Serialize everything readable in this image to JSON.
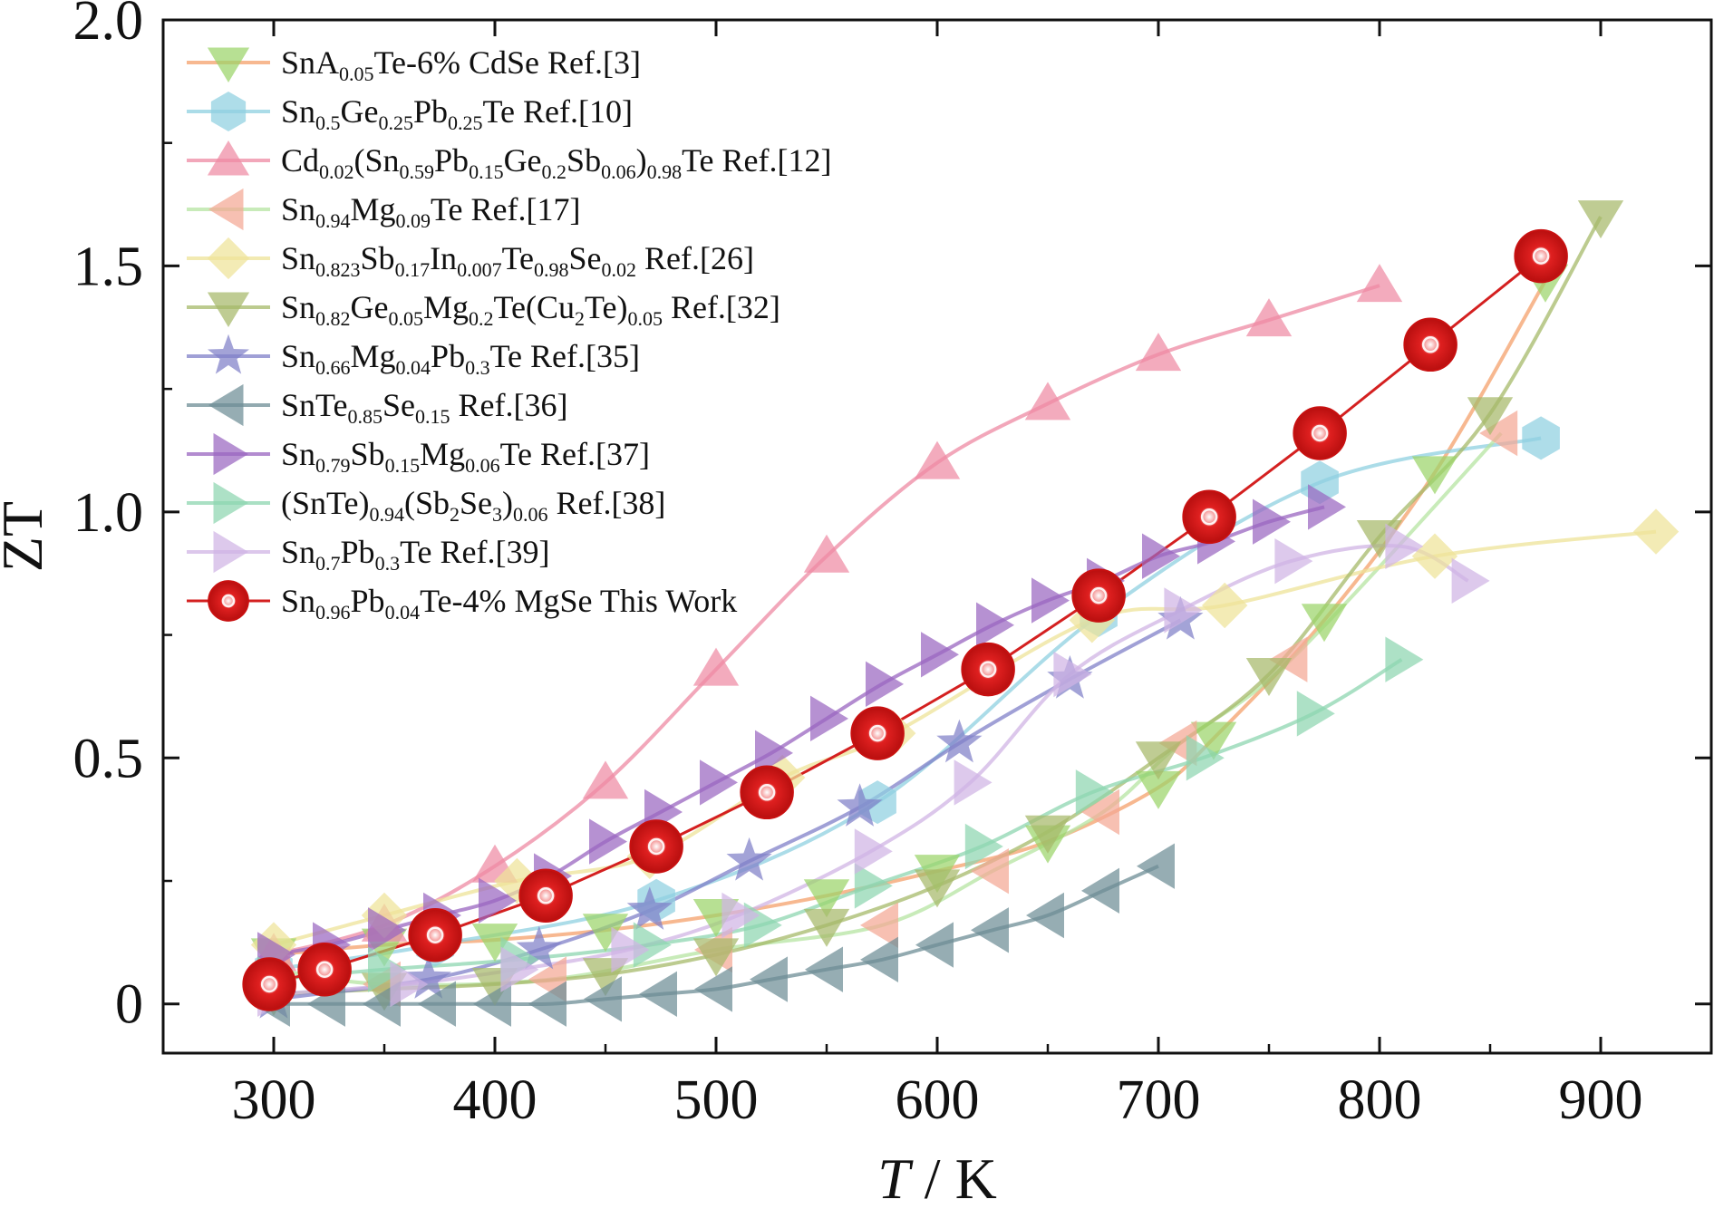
{
  "chart_data": {
    "type": "line",
    "xlabel_italic": "T",
    "xlabel_rest": " / K",
    "ylabel": "ZT",
    "xlim": [
      250,
      950
    ],
    "ylim": [
      -0.1,
      2.0
    ],
    "xticks": [
      300,
      400,
      500,
      600,
      700,
      800,
      900
    ],
    "yticks": [
      0,
      0.5,
      1.0,
      1.5,
      2.0
    ],
    "ytick_labels": [
      "0",
      "0.5",
      "1.0",
      "1.5",
      "2.0"
    ],
    "legend_position": "top-left",
    "series": [
      {
        "key": "s1",
        "marker": "triangle-down",
        "color": "#f4a06b",
        "marker_color": "#9bd46a",
        "label": [
          [
            "t",
            "SnA"
          ],
          [
            "s",
            "0.05"
          ],
          [
            "t",
            "Te-6% CdSe   Ref.[3]"
          ]
        ],
        "x": [
          300,
          350,
          400,
          450,
          500,
          550,
          600,
          650,
          700,
          725,
          775,
          825,
          875
        ],
        "y": [
          0.1,
          0.12,
          0.13,
          0.15,
          0.18,
          0.22,
          0.27,
          0.33,
          0.44,
          0.54,
          0.78,
          1.08,
          1.47
        ]
      },
      {
        "key": "s2",
        "marker": "hexagon",
        "color": "#8fd0e0",
        "marker_color": "#8fd0e0",
        "label": [
          [
            "t",
            "Sn"
          ],
          [
            "s",
            "0.5"
          ],
          [
            "t",
            "Ge"
          ],
          [
            "s",
            "0.25"
          ],
          [
            "t",
            "Pb"
          ],
          [
            "s",
            "0.25"
          ],
          [
            "t",
            "Te   Ref.[10]"
          ]
        ],
        "x": [
          300,
          373,
          473,
          573,
          673,
          773,
          873
        ],
        "y": [
          0.07,
          0.12,
          0.21,
          0.41,
          0.79,
          1.06,
          1.15
        ]
      },
      {
        "key": "s3",
        "marker": "triangle-up",
        "color": "#ee8aa3",
        "marker_color": "#ee8aa3",
        "label": [
          [
            "t",
            "Cd"
          ],
          [
            "s",
            "0.02"
          ],
          [
            "t",
            "(Sn"
          ],
          [
            "s",
            "0.59"
          ],
          [
            "t",
            "Pb"
          ],
          [
            "s",
            "0.15"
          ],
          [
            "t",
            "Ge"
          ],
          [
            "s",
            "0.2"
          ],
          [
            "t",
            "Sb"
          ],
          [
            "s",
            "0.06"
          ],
          [
            "t",
            ")"
          ],
          [
            "s",
            "0.98"
          ],
          [
            "t",
            "Te Ref.[12]"
          ]
        ],
        "x": [
          300,
          350,
          400,
          450,
          500,
          550,
          600,
          650,
          700,
          750,
          800
        ],
        "y": [
          0.1,
          0.16,
          0.28,
          0.45,
          0.68,
          0.91,
          1.1,
          1.22,
          1.32,
          1.39,
          1.46
        ]
      },
      {
        "key": "s4",
        "marker": "triangle-left",
        "color": "#b6e4a2",
        "marker_color": "#f4a894",
        "label": [
          [
            "t",
            "Sn"
          ],
          [
            "s",
            "0.94"
          ],
          [
            "t",
            "Mg"
          ],
          [
            "s",
            "0.09"
          ],
          [
            "t",
            "Te  Ref.[17]"
          ]
        ],
        "x": [
          300,
          350,
          425,
          500,
          575,
          625,
          675,
          710,
          760,
          855
        ],
        "y": [
          0.07,
          0.04,
          0.05,
          0.11,
          0.16,
          0.27,
          0.39,
          0.53,
          0.7,
          1.16
        ]
      },
      {
        "key": "s5",
        "marker": "diamond",
        "color": "#eee398",
        "marker_color": "#eee398",
        "label": [
          [
            "t",
            "Sn"
          ],
          [
            "s",
            "0.823"
          ],
          [
            "t",
            "Sb"
          ],
          [
            "s",
            "0.17"
          ],
          [
            "t",
            "In"
          ],
          [
            "s",
            "0.007"
          ],
          [
            "t",
            "Te"
          ],
          [
            "s",
            "0.98"
          ],
          [
            "t",
            "Se"
          ],
          [
            "s",
            "0.02"
          ],
          [
            "t",
            "  Ref.[26]"
          ]
        ],
        "x": [
          300,
          350,
          410,
          470,
          530,
          580,
          670,
          730,
          825,
          925
        ],
        "y": [
          0.12,
          0.18,
          0.25,
          0.3,
          0.46,
          0.55,
          0.78,
          0.81,
          0.91,
          0.96
        ]
      },
      {
        "key": "s6",
        "marker": "triangle-down",
        "color": "#a6b96a",
        "marker_color": "#a6b96a",
        "label": [
          [
            "t",
            "Sn"
          ],
          [
            "s",
            "0.82"
          ],
          [
            "t",
            "Ge"
          ],
          [
            "s",
            "0.05"
          ],
          [
            "t",
            "Mg"
          ],
          [
            "s",
            "0.2"
          ],
          [
            "t",
            "Te(Cu"
          ],
          [
            "s",
            "2"
          ],
          [
            "t",
            "Te)"
          ],
          [
            "s",
            "0.05"
          ],
          [
            "t",
            "   Ref.[32]"
          ]
        ],
        "x": [
          300,
          350,
          400,
          450,
          500,
          550,
          600,
          650,
          700,
          750,
          800,
          850,
          900
        ],
        "y": [
          0.02,
          0.03,
          0.04,
          0.06,
          0.1,
          0.16,
          0.24,
          0.35,
          0.5,
          0.67,
          0.95,
          1.2,
          1.6
        ]
      },
      {
        "key": "s7",
        "marker": "star",
        "color": "#8080c8",
        "marker_color": "#8080c8",
        "label": [
          [
            "t",
            "Sn"
          ],
          [
            "s",
            "0.66"
          ],
          [
            "t",
            "Mg"
          ],
          [
            "s",
            "0.04"
          ],
          [
            "t",
            "Pb"
          ],
          [
            "s",
            "0.3"
          ],
          [
            "t",
            "Te   Ref.[35]"
          ]
        ],
        "x": [
          300,
          370,
          420,
          470,
          515,
          565,
          610,
          660,
          710
        ],
        "y": [
          0.01,
          0.05,
          0.11,
          0.19,
          0.29,
          0.4,
          0.53,
          0.66,
          0.78
        ]
      },
      {
        "key": "s8",
        "marker": "triangle-left",
        "color": "#6e8e96",
        "marker_color": "#6e8e96",
        "label": [
          [
            "t",
            "SnTe"
          ],
          [
            "s",
            "0.85"
          ],
          [
            "t",
            "Se"
          ],
          [
            "s",
            "0.15"
          ],
          [
            "t",
            "  Ref.[36]"
          ]
        ],
        "x": [
          300,
          325,
          350,
          375,
          400,
          425,
          450,
          475,
          500,
          525,
          550,
          575,
          600,
          625,
          650,
          675,
          700
        ],
        "y": [
          0.0,
          0.0,
          0.0,
          0.0,
          0.0,
          0.0,
          0.01,
          0.02,
          0.03,
          0.05,
          0.07,
          0.09,
          0.12,
          0.15,
          0.18,
          0.23,
          0.28
        ]
      },
      {
        "key": "s9",
        "marker": "triangle-right",
        "color": "#9a66c0",
        "marker_color": "#9a66c0",
        "label": [
          [
            "t",
            "Sn"
          ],
          [
            "s",
            "0.79"
          ],
          [
            "t",
            "Sb"
          ],
          [
            "s",
            "0.15"
          ],
          [
            "t",
            "Mg"
          ],
          [
            "s",
            "0.06"
          ],
          [
            "t",
            "Te   Ref.[37]"
          ]
        ],
        "x": [
          300,
          325,
          350,
          375,
          400,
          425,
          450,
          475,
          500,
          525,
          550,
          575,
          600,
          625,
          650,
          675,
          700,
          725,
          750,
          775
        ],
        "y": [
          0.1,
          0.12,
          0.15,
          0.18,
          0.21,
          0.26,
          0.33,
          0.39,
          0.45,
          0.51,
          0.58,
          0.65,
          0.71,
          0.77,
          0.82,
          0.86,
          0.91,
          0.94,
          0.98,
          1.01
        ]
      },
      {
        "key": "s10",
        "marker": "triangle-right",
        "color": "#8ed6b0",
        "marker_color": "#8ed6b0",
        "label": [
          [
            "t",
            "(SnTe)"
          ],
          [
            "s",
            "0.94"
          ],
          [
            "t",
            "(Sb"
          ],
          [
            "s",
            "2"
          ],
          [
            "t",
            "Se"
          ],
          [
            "s",
            "3"
          ],
          [
            "t",
            ")"
          ],
          [
            "s",
            "0.06"
          ],
          [
            "t",
            "   Ref.[38]"
          ]
        ],
        "x": [
          300,
          350,
          410,
          470,
          520,
          570,
          620,
          670,
          720,
          770,
          810
        ],
        "y": [
          0.05,
          0.07,
          0.09,
          0.12,
          0.16,
          0.24,
          0.32,
          0.43,
          0.5,
          0.59,
          0.7
        ]
      },
      {
        "key": "s11",
        "marker": "triangle-right",
        "color": "#d0b4e4",
        "marker_color": "#d0b4e4",
        "label": [
          [
            "t",
            "Sn"
          ],
          [
            "s",
            "0.7"
          ],
          [
            "t",
            "Pb"
          ],
          [
            "s",
            "0.3"
          ],
          [
            "t",
            "Te  Ref.[39]"
          ]
        ],
        "x": [
          300,
          360,
          410,
          460,
          510,
          570,
          615,
          660,
          710,
          760,
          810,
          840
        ],
        "y": [
          0.02,
          0.04,
          0.07,
          0.11,
          0.18,
          0.31,
          0.45,
          0.67,
          0.8,
          0.9,
          0.93,
          0.86
        ]
      },
      {
        "key": "s12",
        "marker": "ball",
        "color": "#d42020",
        "marker_color": "#e02828",
        "label": [
          [
            "t",
            "Sn"
          ],
          [
            "s",
            "0.96"
          ],
          [
            "t",
            "Pb"
          ],
          [
            "s",
            "0.04"
          ],
          [
            "t",
            "Te-4% MgSe This Work"
          ]
        ],
        "x": [
          298,
          323,
          373,
          423,
          473,
          523,
          573,
          623,
          673,
          723,
          773,
          823,
          873
        ],
        "y": [
          0.04,
          0.07,
          0.14,
          0.22,
          0.32,
          0.43,
          0.55,
          0.68,
          0.83,
          0.99,
          1.16,
          1.34,
          1.52
        ]
      }
    ]
  }
}
